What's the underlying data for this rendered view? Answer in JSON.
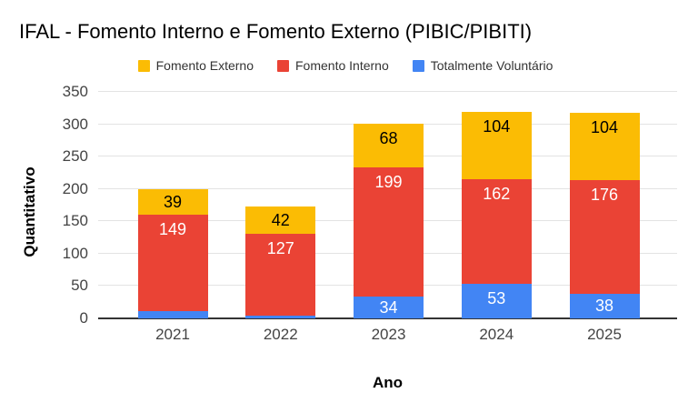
{
  "chart_data": {
    "type": "bar",
    "stacked": true,
    "title": "IFAL - Fomento Interno e Fomento Externo (PIBIC/PIBITI)",
    "xlabel": "Ano",
    "ylabel": "Quantitativo",
    "categories": [
      "2021",
      "2022",
      "2023",
      "2024",
      "2025"
    ],
    "series": [
      {
        "name": "Totalmente Voluntário",
        "color": "#4285F4",
        "label_color": "#ffffff",
        "values": [
          11,
          4,
          34,
          53,
          38
        ]
      },
      {
        "name": "Fomento Interno",
        "color": "#EA4335",
        "label_color": "#ffffff",
        "values": [
          149,
          127,
          199,
          162,
          176
        ]
      },
      {
        "name": "Fomento Externo",
        "color": "#FBBC04",
        "label_color": "#000000",
        "values": [
          39,
          42,
          68,
          104,
          104
        ]
      }
    ],
    "totals": [
      199,
      173,
      301,
      319,
      318
    ],
    "legend": {
      "position": "top",
      "items": [
        {
          "label": "Fomento Externo",
          "color": "#FBBC04"
        },
        {
          "label": "Fomento Interno",
          "color": "#EA4335"
        },
        {
          "label": "Totalmente Voluntário",
          "color": "#4285F4"
        }
      ]
    },
    "ylim": [
      0,
      350
    ],
    "ytick_step": 50,
    "yticks": [
      0,
      50,
      100,
      150,
      200,
      250,
      300,
      350
    ],
    "grid": true,
    "stack_order": "bottom-to-top"
  }
}
